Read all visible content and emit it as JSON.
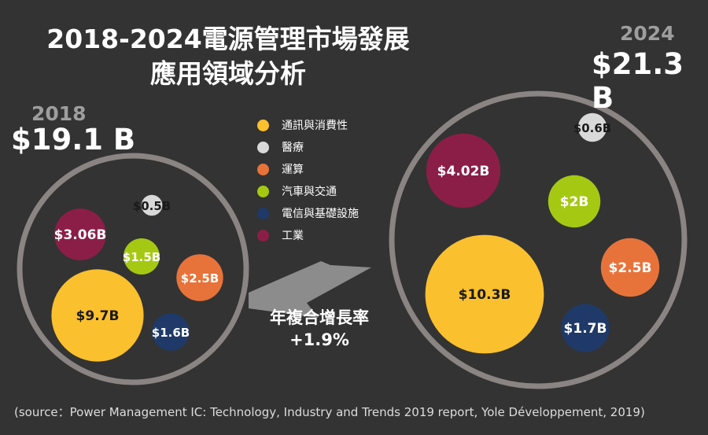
{
  "title_line1": "2018-2024電源管理市場發展",
  "title_line2": "應用領域分析",
  "source": "(source：Power Management IC: Technology, Industry and Trends 2019 report, Yole Développement, 2019)",
  "cagr": {
    "label": "年複合增長率",
    "value": "+1.9%"
  },
  "colors": {
    "background": "#333333",
    "ring": "#8a8483",
    "arrow": "#8c8c8c"
  },
  "chart_data": {
    "type": "bubble",
    "categories": [
      {
        "name": "通訊與消費性",
        "color": "#fbc02d"
      },
      {
        "name": "醫療",
        "color": "#d9d9d9"
      },
      {
        "name": "運算",
        "color": "#e8733a"
      },
      {
        "name": "汽車與交通",
        "color": "#a5c912"
      },
      {
        "name": "電信與基礎設施",
        "color": "#1f3a68"
      },
      {
        "name": "工業",
        "color": "#8b1e47"
      }
    ],
    "groups": [
      {
        "year": "2018",
        "total": "$19.1 B",
        "values": [
          9.7,
          0.5,
          2.5,
          1.5,
          1.6,
          3.06
        ],
        "labels": [
          "$9.7B",
          "$0.5B",
          "$2.5B",
          "$1.5B",
          "$1.6B",
          "$3.06B"
        ]
      },
      {
        "year": "2024",
        "total": "$21.3 B",
        "values": [
          10.3,
          0.6,
          2.5,
          2,
          1.7,
          4.02
        ],
        "labels": [
          "$10.3B",
          "$0.6B",
          "$2.5B",
          "$2B",
          "$1.7B",
          "$4.02B"
        ]
      }
    ]
  }
}
